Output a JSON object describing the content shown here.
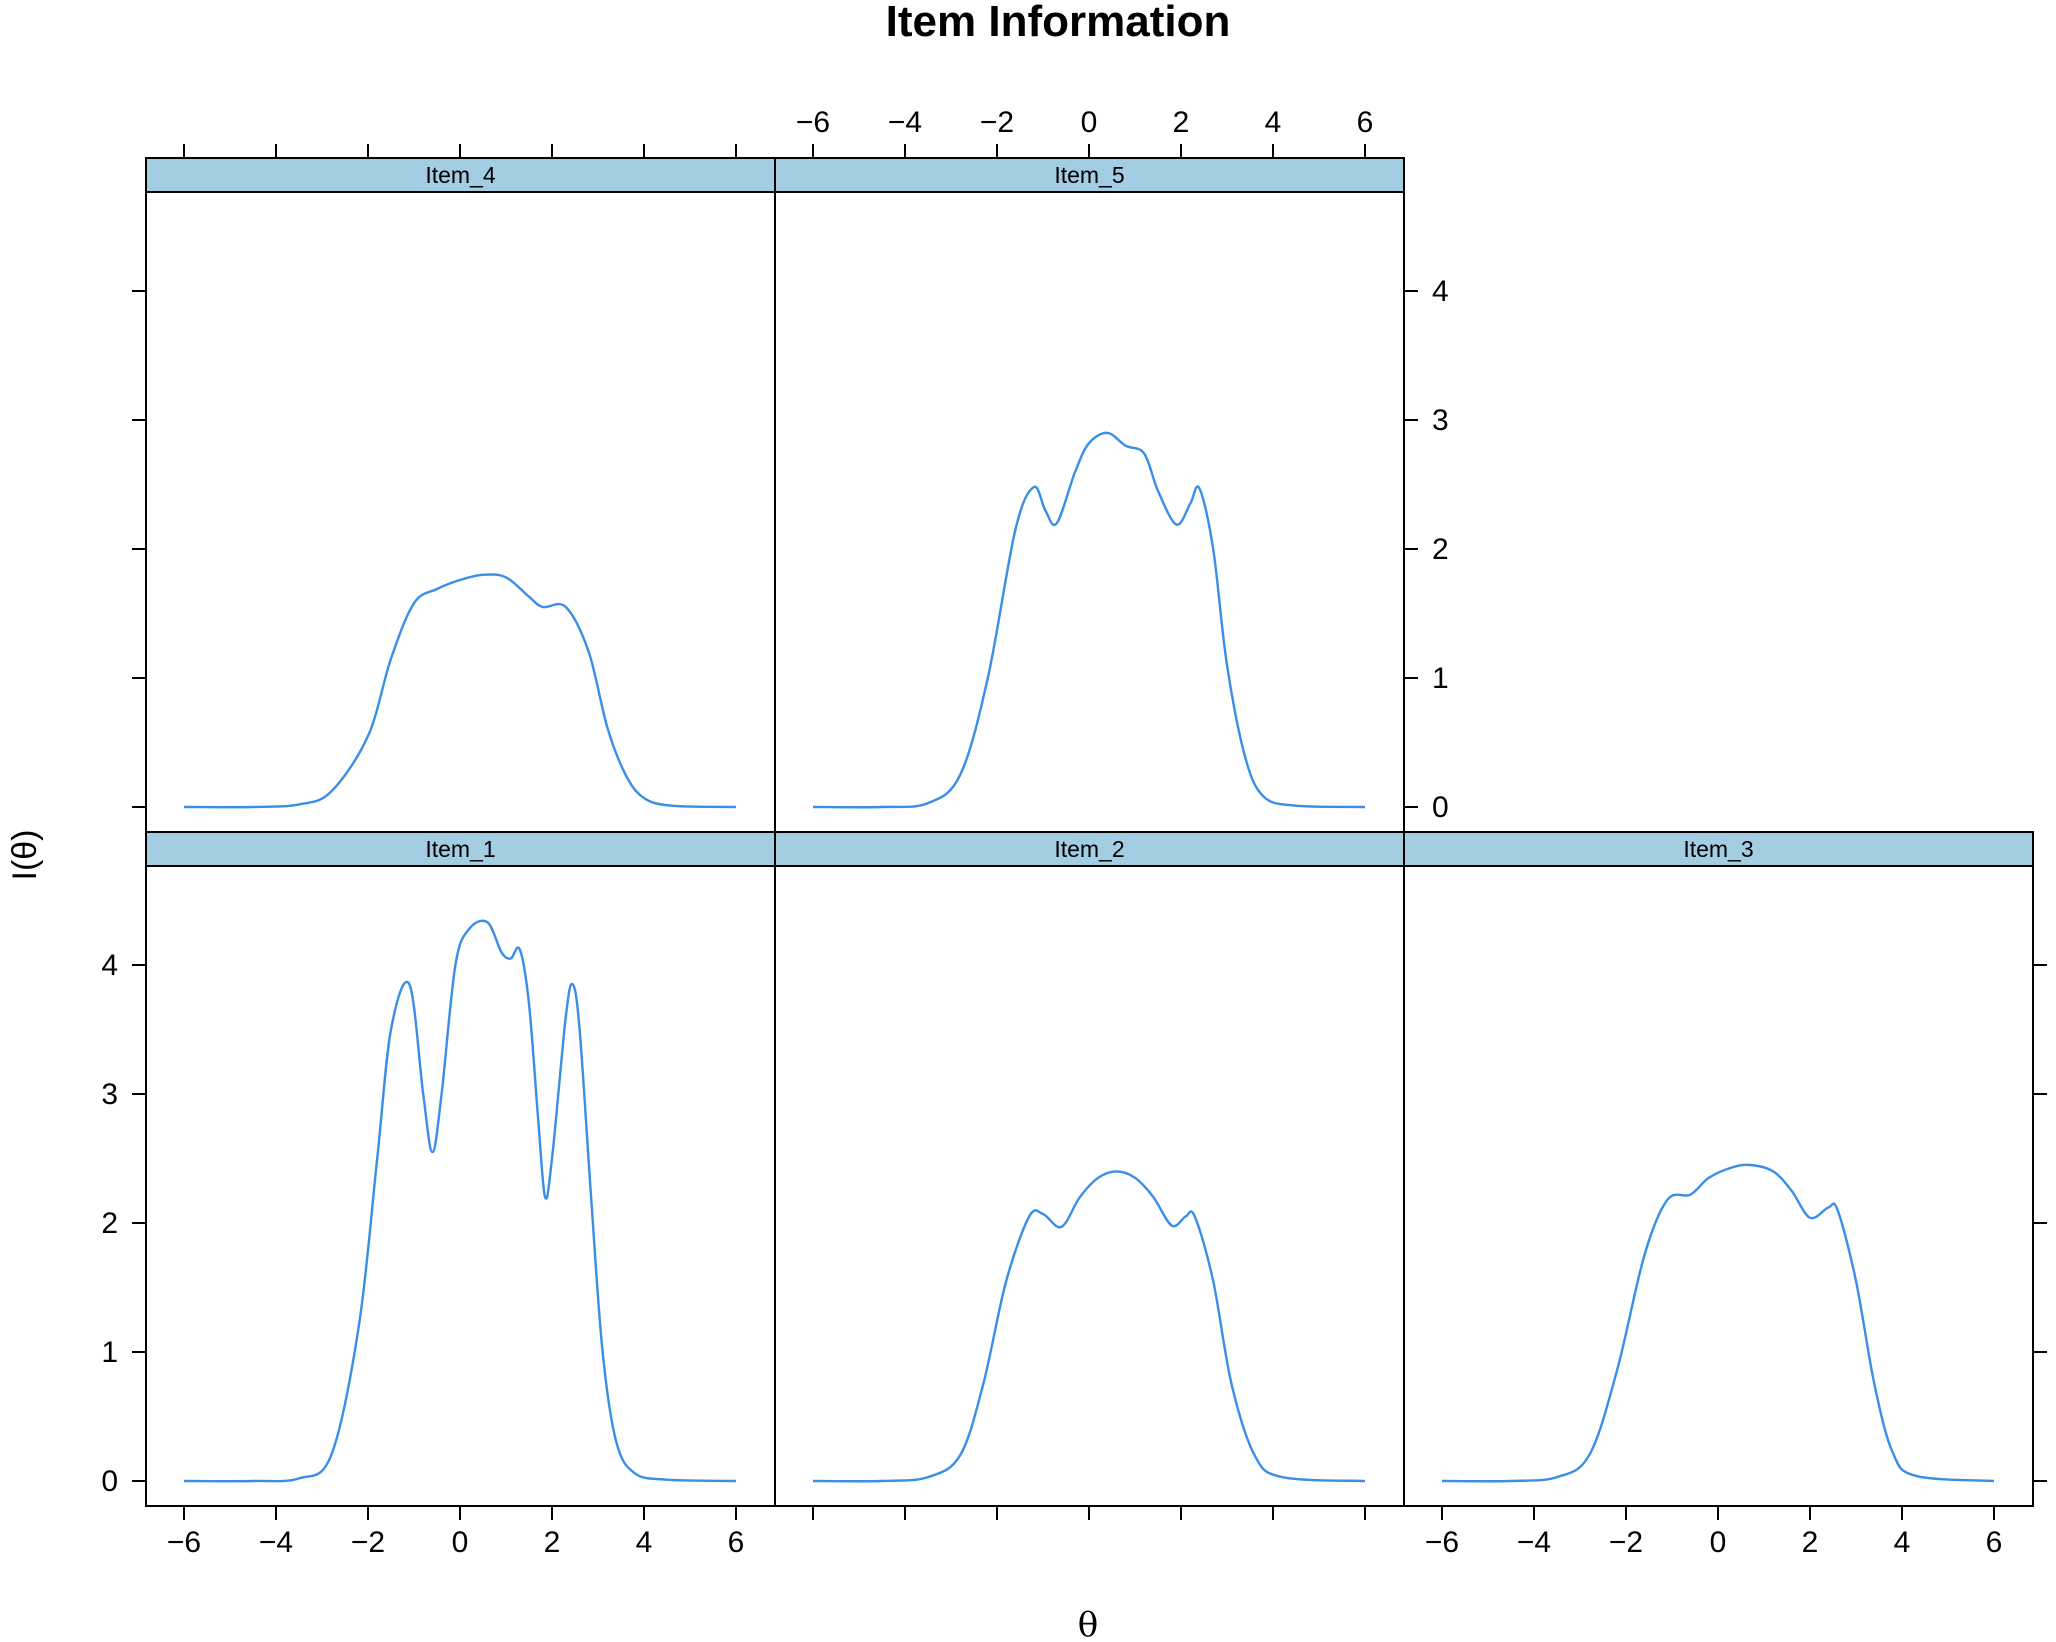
{
  "chart_data": {
    "type": "line",
    "title": "Item Information",
    "xlabel": "θ",
    "ylabel": "I(θ)",
    "xlim": [
      -6,
      6
    ],
    "ylim": [
      0,
      4.4
    ],
    "x_ticks": [
      -6,
      -4,
      -2,
      0,
      2,
      4,
      6
    ],
    "x_tick_labels": [
      "−6",
      "−4",
      "−2",
      "0",
      "2",
      "4",
      "6"
    ],
    "y_ticks": [
      0,
      1,
      2,
      3,
      4
    ],
    "y_tick_labels": [
      "0",
      "1",
      "2",
      "3",
      "4"
    ],
    "line_color": "#3a8ee6",
    "strip_color": "#a3cde3",
    "grid": false,
    "layout": "3 columns x 2 rows (lattice)",
    "panels": [
      {
        "name": "Item_4",
        "points": [
          [
            -6,
            0
          ],
          [
            -4.5,
            0
          ],
          [
            -3.5,
            0.02
          ],
          [
            -2.8,
            0.12
          ],
          [
            -2,
            0.55
          ],
          [
            -1.5,
            1.15
          ],
          [
            -1,
            1.58
          ],
          [
            -0.5,
            1.69
          ],
          [
            0,
            1.76
          ],
          [
            0.5,
            1.8
          ],
          [
            1,
            1.78
          ],
          [
            1.5,
            1.63
          ],
          [
            1.8,
            1.55
          ],
          [
            2.3,
            1.55
          ],
          [
            2.8,
            1.2
          ],
          [
            3.2,
            0.62
          ],
          [
            3.6,
            0.25
          ],
          [
            4,
            0.07
          ],
          [
            4.6,
            0.01
          ],
          [
            6,
            0
          ]
        ]
      },
      {
        "name": "Item_5",
        "points": [
          [
            -6,
            0
          ],
          [
            -4.5,
            0
          ],
          [
            -3.5,
            0.03
          ],
          [
            -2.8,
            0.25
          ],
          [
            -2.2,
            1.0
          ],
          [
            -1.6,
            2.15
          ],
          [
            -1.2,
            2.48
          ],
          [
            -0.95,
            2.3
          ],
          [
            -0.7,
            2.2
          ],
          [
            -0.3,
            2.6
          ],
          [
            0,
            2.82
          ],
          [
            0.4,
            2.9
          ],
          [
            0.8,
            2.8
          ],
          [
            1.2,
            2.74
          ],
          [
            1.5,
            2.45
          ],
          [
            1.9,
            2.19
          ],
          [
            2.2,
            2.35
          ],
          [
            2.4,
            2.47
          ],
          [
            2.7,
            2.0
          ],
          [
            3.0,
            1.1
          ],
          [
            3.4,
            0.38
          ],
          [
            3.8,
            0.08
          ],
          [
            4.5,
            0.01
          ],
          [
            6,
            0
          ]
        ]
      },
      {
        "name": "Item_1",
        "points": [
          [
            -6,
            0
          ],
          [
            -4.5,
            0
          ],
          [
            -3.5,
            0.02
          ],
          [
            -2.8,
            0.2
          ],
          [
            -2.2,
            1.2
          ],
          [
            -1.8,
            2.5
          ],
          [
            -1.5,
            3.5
          ],
          [
            -1.1,
            3.85
          ],
          [
            -0.8,
            3.0
          ],
          [
            -0.6,
            2.55
          ],
          [
            -0.4,
            3.0
          ],
          [
            -0.1,
            4.0
          ],
          [
            0.2,
            4.28
          ],
          [
            0.6,
            4.33
          ],
          [
            0.9,
            4.1
          ],
          [
            1.1,
            4.05
          ],
          [
            1.3,
            4.12
          ],
          [
            1.5,
            3.7
          ],
          [
            1.7,
            2.8
          ],
          [
            1.85,
            2.2
          ],
          [
            2.0,
            2.5
          ],
          [
            2.3,
            3.6
          ],
          [
            2.45,
            3.85
          ],
          [
            2.6,
            3.5
          ],
          [
            2.85,
            2.2
          ],
          [
            3.1,
            1.0
          ],
          [
            3.4,
            0.3
          ],
          [
            3.8,
            0.06
          ],
          [
            4.5,
            0.01
          ],
          [
            6,
            0
          ]
        ]
      },
      {
        "name": "Item_2",
        "points": [
          [
            -6,
            0
          ],
          [
            -4.5,
            0
          ],
          [
            -3.5,
            0.03
          ],
          [
            -2.8,
            0.2
          ],
          [
            -2.3,
            0.75
          ],
          [
            -1.8,
            1.55
          ],
          [
            -1.3,
            2.05
          ],
          [
            -1.0,
            2.07
          ],
          [
            -0.6,
            1.97
          ],
          [
            -0.2,
            2.2
          ],
          [
            0.2,
            2.35
          ],
          [
            0.6,
            2.4
          ],
          [
            1.0,
            2.35
          ],
          [
            1.4,
            2.2
          ],
          [
            1.8,
            1.98
          ],
          [
            2.1,
            2.05
          ],
          [
            2.3,
            2.05
          ],
          [
            2.7,
            1.55
          ],
          [
            3.1,
            0.75
          ],
          [
            3.6,
            0.2
          ],
          [
            4.2,
            0.03
          ],
          [
            6,
            0
          ]
        ]
      },
      {
        "name": "Item_3",
        "points": [
          [
            -6,
            0
          ],
          [
            -4.5,
            0
          ],
          [
            -3.5,
            0.03
          ],
          [
            -2.8,
            0.2
          ],
          [
            -2.2,
            0.85
          ],
          [
            -1.6,
            1.75
          ],
          [
            -1.1,
            2.18
          ],
          [
            -0.6,
            2.22
          ],
          [
            -0.2,
            2.35
          ],
          [
            0.3,
            2.43
          ],
          [
            0.7,
            2.45
          ],
          [
            1.2,
            2.4
          ],
          [
            1.6,
            2.25
          ],
          [
            2.0,
            2.04
          ],
          [
            2.4,
            2.12
          ],
          [
            2.6,
            2.1
          ],
          [
            3.0,
            1.55
          ],
          [
            3.4,
            0.75
          ],
          [
            3.8,
            0.22
          ],
          [
            4.3,
            0.04
          ],
          [
            6,
            0
          ]
        ]
      }
    ]
  }
}
